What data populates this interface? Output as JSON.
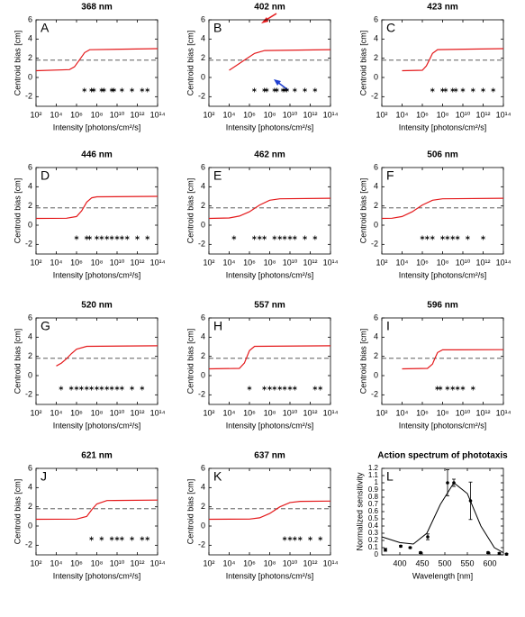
{
  "chart_data": [
    {
      "type": "line",
      "title": "368 nm",
      "panel": "A",
      "xlabel": "Intensity [photons/cm²/s]",
      "ylabel": "Centroid bias [cm]",
      "xscale": "log",
      "xlim": [
        100.0,
        100000000000000.0
      ],
      "xticks": [
        {
          "value": 100.0,
          "label": "10²"
        },
        {
          "value": 10000.0,
          "label": "10⁴"
        },
        {
          "value": 1000000.0,
          "label": "10⁶"
        },
        {
          "value": 100000000.0,
          "label": "10⁸"
        },
        {
          "value": 10000000000.0,
          "label": "10¹⁰"
        },
        {
          "value": 1000000000000.0,
          "label": "10¹²"
        },
        {
          "value": 100000000000000.0,
          "label": "10¹⁴"
        }
      ],
      "ylim": [
        -3,
        6
      ],
      "yticks": [
        -2,
        0,
        2,
        4,
        6
      ],
      "color": "#e41a1c",
      "threshold": 1.8,
      "x": [
        100.0,
        200000.0,
        630000.0,
        2000000.0,
        6300000.0,
        20000000.0,
        100000000000000.0
      ],
      "values": [
        0.7,
        0.82,
        1.11,
        1.85,
        2.59,
        2.89,
        3.0
      ],
      "significant": [
        6000000.0,
        30000000.0,
        50000000.0,
        300000000.0,
        500000000.0,
        3000000000.0,
        5000000000.0,
        30000000000.0,
        300000000000.0,
        3000000000000.0,
        10000000000000.0
      ]
    },
    {
      "type": "line",
      "title": "402 nm",
      "panel": "B",
      "xlabel": "Intensity [photons/cm²/s]",
      "ylabel": "Centroid bias [cm]",
      "xscale": "log",
      "xlim": [
        100.0,
        100000000000000.0
      ],
      "xticks": [
        {
          "value": 100.0,
          "label": "10²"
        },
        {
          "value": 10000.0,
          "label": "10⁴"
        },
        {
          "value": 1000000.0,
          "label": "10⁶"
        },
        {
          "value": 100000000.0,
          "label": "10⁸"
        },
        {
          "value": 10000000000.0,
          "label": "10¹⁰"
        },
        {
          "value": 1000000000000.0,
          "label": "10¹²"
        },
        {
          "value": 100000000000000.0,
          "label": "10¹⁴"
        }
      ],
      "ylim": [
        -3,
        6
      ],
      "yticks": [
        -2,
        0,
        2,
        4,
        6
      ],
      "color": "#e41a1c",
      "threshold": 1.8,
      "x": [
        10000.0,
        32000.0,
        320000.0,
        3200000.0,
        32000000.0,
        100000000000000.0
      ],
      "values": [
        0.75,
        1.1,
        1.8,
        2.5,
        2.8,
        2.9
      ],
      "significant": [
        3000000.0,
        30000000.0,
        50000000.0,
        300000000.0,
        500000000.0,
        2000000000.0,
        3000000000.0,
        5000000000.0,
        30000000000.0,
        300000000000.0,
        3000000000000.0
      ]
    },
    {
      "type": "line",
      "title": "423 nm",
      "panel": "C",
      "xlabel": "Intensity [photons/cm²/s]",
      "ylabel": "Centroid bias [cm]",
      "xscale": "log",
      "xlim": [
        100.0,
        100000000000000.0
      ],
      "xticks": [
        {
          "value": 100.0,
          "label": "10²"
        },
        {
          "value": 10000.0,
          "label": "10⁴"
        },
        {
          "value": 1000000.0,
          "label": "10⁶"
        },
        {
          "value": 100000000.0,
          "label": "10⁸"
        },
        {
          "value": 10000000000.0,
          "label": "10¹⁰"
        },
        {
          "value": 1000000000000.0,
          "label": "10¹²"
        },
        {
          "value": 100000000000000.0,
          "label": "10¹⁴"
        }
      ],
      "ylim": [
        -3,
        6
      ],
      "yticks": [
        -2,
        0,
        2,
        4,
        6
      ],
      "color": "#e41a1c",
      "threshold": 1.8,
      "x": [
        10000.0,
        1000000.0,
        2500000.0,
        5000000.0,
        10000000.0,
        32000000.0,
        100000000000000.0
      ],
      "values": [
        0.7,
        0.75,
        1.2,
        1.85,
        2.5,
        2.9,
        3.0
      ],
      "significant": [
        10000000.0,
        100000000.0,
        200000000.0,
        1000000000.0,
        2000000000.0,
        10000000000.0,
        100000000000.0,
        1000000000000.0,
        10000000000000.0
      ]
    },
    {
      "type": "line",
      "title": "446 nm",
      "panel": "D",
      "xlabel": "Intensity [photons/cm²/s]",
      "ylabel": "Centroid bias [cm]",
      "xscale": "log",
      "xlim": [
        100.0,
        100000000000000.0
      ],
      "xticks": [
        {
          "value": 100.0,
          "label": "10²"
        },
        {
          "value": 10000.0,
          "label": "10⁴"
        },
        {
          "value": 1000000.0,
          "label": "10⁶"
        },
        {
          "value": 100000000.0,
          "label": "10⁸"
        },
        {
          "value": 10000000000.0,
          "label": "10¹⁰"
        },
        {
          "value": 1000000000000.0,
          "label": "10¹²"
        },
        {
          "value": 100000000000000.0,
          "label": "10¹⁴"
        }
      ],
      "ylim": [
        -3,
        6
      ],
      "yticks": [
        -2,
        0,
        2,
        4,
        6
      ],
      "color": "#e41a1c",
      "threshold": 1.8,
      "x": [
        100.0,
        100000.0,
        1000000.0,
        3200000.0,
        10000000.0,
        32000000.0,
        100000000.0,
        100000000000000.0
      ],
      "values": [
        0.7,
        0.72,
        0.9,
        1.5,
        2.4,
        2.85,
        2.95,
        3.0
      ],
      "significant": [
        1000000.0,
        10000000.0,
        20000000.0,
        100000000.0,
        300000000.0,
        1000000000.0,
        3000000000.0,
        10000000000.0,
        30000000000.0,
        100000000000.0,
        1000000000000.0,
        10000000000000.0
      ]
    },
    {
      "type": "line",
      "title": "462 nm",
      "panel": "E",
      "xlabel": "Intensity [photons/cm²/s]",
      "ylabel": "Centroid bias [cm]",
      "xscale": "log",
      "xlim": [
        100.0,
        100000000000000.0
      ],
      "xticks": [
        {
          "value": 100.0,
          "label": "10²"
        },
        {
          "value": 10000.0,
          "label": "10⁴"
        },
        {
          "value": 1000000.0,
          "label": "10⁶"
        },
        {
          "value": 100000000.0,
          "label": "10⁸"
        },
        {
          "value": 10000000000.0,
          "label": "10¹⁰"
        },
        {
          "value": 1000000000000.0,
          "label": "10¹²"
        },
        {
          "value": 100000000000000.0,
          "label": "10¹⁴"
        }
      ],
      "ylim": [
        -3,
        6
      ],
      "yticks": [
        -2,
        0,
        2,
        4,
        6
      ],
      "color": "#e41a1c",
      "threshold": 1.8,
      "x": [
        100.0,
        10000.0,
        100000.0,
        1000000.0,
        10000000.0,
        100000000.0,
        1000000000.0,
        100000000000000.0
      ],
      "values": [
        0.7,
        0.75,
        0.95,
        1.4,
        2.1,
        2.6,
        2.75,
        2.8
      ],
      "significant": [
        30000.0,
        3000000.0,
        10000000.0,
        30000000.0,
        300000000.0,
        1000000000.0,
        3000000000.0,
        10000000000.0,
        30000000000.0,
        300000000000.0,
        3000000000000.0
      ]
    },
    {
      "type": "line",
      "title": "506 nm",
      "panel": "F",
      "xlabel": "Intensity [photons/cm²/s]",
      "ylabel": "Centroid bias [cm]",
      "xscale": "log",
      "xlim": [
        100.0,
        100000000000000.0
      ],
      "xticks": [
        {
          "value": 100.0,
          "label": "10²"
        },
        {
          "value": 10000.0,
          "label": "10⁴"
        },
        {
          "value": 1000000.0,
          "label": "10⁶"
        },
        {
          "value": 100000000.0,
          "label": "10⁸"
        },
        {
          "value": 10000000000.0,
          "label": "10¹⁰"
        },
        {
          "value": 1000000000000.0,
          "label": "10¹²"
        },
        {
          "value": 100000000000000.0,
          "label": "10¹⁴"
        }
      ],
      "ylim": [
        -3,
        6
      ],
      "yticks": [
        -2,
        0,
        2,
        4,
        6
      ],
      "color": "#e41a1c",
      "threshold": 1.8,
      "x": [
        100.0,
        1000.0,
        10000.0,
        100000.0,
        1000000.0,
        10000000.0,
        100000000.0,
        100000000000000.0
      ],
      "values": [
        0.7,
        0.72,
        0.9,
        1.4,
        2.1,
        2.6,
        2.75,
        2.8
      ],
      "significant": [
        1000000.0,
        3000000.0,
        10000000.0,
        100000000.0,
        300000000.0,
        1000000000.0,
        3000000000.0,
        30000000000.0,
        1000000000000.0
      ]
    },
    {
      "type": "line",
      "title": "520 nm",
      "panel": "G",
      "xlabel": "Intensity [photons/cm²/s]",
      "ylabel": "Centroid bias [cm]",
      "xscale": "log",
      "xlim": [
        100.0,
        100000000000000.0
      ],
      "xticks": [
        {
          "value": 100.0,
          "label": "10²"
        },
        {
          "value": 10000.0,
          "label": "10⁴"
        },
        {
          "value": 1000000.0,
          "label": "10⁶"
        },
        {
          "value": 100000000.0,
          "label": "10⁸"
        },
        {
          "value": 10000000000.0,
          "label": "10¹⁰"
        },
        {
          "value": 1000000000000.0,
          "label": "10¹²"
        },
        {
          "value": 100000000000000.0,
          "label": "10¹⁴"
        }
      ],
      "ylim": [
        -3,
        6
      ],
      "yticks": [
        -2,
        0,
        2,
        4,
        6
      ],
      "color": "#e41a1c",
      "threshold": 1.8,
      "x": [
        10000.0,
        32000.0,
        100000.0,
        320000.0,
        1000000.0,
        10000000.0,
        100000000000000.0
      ],
      "values": [
        1.0,
        1.3,
        1.75,
        2.3,
        2.75,
        3.05,
        3.1
      ],
      "significant": [
        30000.0,
        300000.0,
        1000000.0,
        3000000.0,
        10000000.0,
        30000000.0,
        100000000.0,
        300000000.0,
        1000000000.0,
        3000000000.0,
        10000000000.0,
        30000000000.0,
        300000000000.0,
        3000000000000.0
      ]
    },
    {
      "type": "line",
      "title": "557 nm",
      "panel": "H",
      "xlabel": "Intensity [photons/cm²/s]",
      "ylabel": "Centroid bias [cm]",
      "xscale": "log",
      "xlim": [
        100.0,
        100000000000000.0
      ],
      "xticks": [
        {
          "value": 100.0,
          "label": "10²"
        },
        {
          "value": 10000.0,
          "label": "10⁴"
        },
        {
          "value": 1000000.0,
          "label": "10⁶"
        },
        {
          "value": 100000000.0,
          "label": "10⁸"
        },
        {
          "value": 10000000000.0,
          "label": "10¹⁰"
        },
        {
          "value": 1000000000000.0,
          "label": "10¹²"
        },
        {
          "value": 100000000000000.0,
          "label": "10¹⁴"
        }
      ],
      "ylim": [
        -3,
        6
      ],
      "yticks": [
        -2,
        0,
        2,
        4,
        6
      ],
      "color": "#e41a1c",
      "threshold": 1.8,
      "x": [
        100.0,
        100000.0,
        320000.0,
        1000000.0,
        3200000.0,
        100000000000000.0
      ],
      "values": [
        0.7,
        0.75,
        1.3,
        2.6,
        3.05,
        3.1
      ],
      "significant": [
        1000000.0,
        30000000.0,
        100000000.0,
        300000000.0,
        1000000000.0,
        3000000000.0,
        10000000000.0,
        30000000000.0,
        3000000000000.0,
        10000000000000.0
      ]
    },
    {
      "type": "line",
      "title": "596 nm",
      "panel": "I",
      "xlabel": "Intensity [photons/cm²/s]",
      "ylabel": "Centroid bias [cm]",
      "xscale": "log",
      "xlim": [
        100.0,
        100000000000000.0
      ],
      "xticks": [
        {
          "value": 100.0,
          "label": "10²"
        },
        {
          "value": 10000.0,
          "label": "10⁴"
        },
        {
          "value": 1000000.0,
          "label": "10⁶"
        },
        {
          "value": 100000000.0,
          "label": "10⁸"
        },
        {
          "value": 10000000000.0,
          "label": "10¹⁰"
        },
        {
          "value": 1000000000000.0,
          "label": "10¹²"
        },
        {
          "value": 100000000000000.0,
          "label": "10¹⁴"
        }
      ],
      "ylim": [
        -3,
        6
      ],
      "yticks": [
        -2,
        0,
        2,
        4,
        6
      ],
      "color": "#e41a1c",
      "threshold": 1.8,
      "x": [
        10000.0,
        3200000.0,
        10000000.0,
        16000000.0,
        32000000.0,
        100000000.0,
        100000000000000.0
      ],
      "values": [
        0.7,
        0.75,
        1.2,
        1.7,
        2.4,
        2.68,
        2.7
      ],
      "significant": [
        30000000.0,
        60000000.0,
        300000000.0,
        1000000000.0,
        3000000000.0,
        10000000000.0,
        100000000000.0
      ]
    },
    {
      "type": "line",
      "title": "621 nm",
      "panel": "J",
      "xlabel": "Intensity [photons/cm²/s]",
      "ylabel": "Centroid bias [cm]",
      "xscale": "log",
      "xlim": [
        100.0,
        100000000000000.0
      ],
      "xticks": [
        {
          "value": 100.0,
          "label": "10²"
        },
        {
          "value": 10000.0,
          "label": "10⁴"
        },
        {
          "value": 1000000.0,
          "label": "10⁶"
        },
        {
          "value": 100000000.0,
          "label": "10⁸"
        },
        {
          "value": 10000000000.0,
          "label": "10¹⁰"
        },
        {
          "value": 1000000000000.0,
          "label": "10¹²"
        },
        {
          "value": 100000000000000.0,
          "label": "10¹⁴"
        }
      ],
      "ylim": [
        -3,
        6
      ],
      "yticks": [
        -2,
        0,
        2,
        4,
        6
      ],
      "color": "#e41a1c",
      "threshold": 1.8,
      "x": [
        100.0,
        1000000.0,
        10000000.0,
        32000000.0,
        100000000.0,
        1000000000.0,
        100000000000000.0
      ],
      "values": [
        0.7,
        0.72,
        1.0,
        1.7,
        2.3,
        2.65,
        2.7
      ],
      "significant": [
        30000000.0,
        300000000.0,
        3000000000.0,
        10000000000.0,
        30000000000.0,
        300000000000.0,
        3000000000000.0,
        10000000000000.0
      ]
    },
    {
      "type": "line",
      "title": "637 nm",
      "panel": "K",
      "xlabel": "Intensity [photons/cm²/s]",
      "ylabel": "Centroid bias [cm]",
      "xscale": "log",
      "xlim": [
        100.0,
        100000000000000.0
      ],
      "xticks": [
        {
          "value": 100.0,
          "label": "10²"
        },
        {
          "value": 10000.0,
          "label": "10⁴"
        },
        {
          "value": 1000000.0,
          "label": "10⁶"
        },
        {
          "value": 100000000.0,
          "label": "10⁸"
        },
        {
          "value": 10000000000.0,
          "label": "10¹⁰"
        },
        {
          "value": 1000000000000.0,
          "label": "10¹²"
        },
        {
          "value": 100000000000000.0,
          "label": "10¹⁴"
        }
      ],
      "ylim": [
        -3,
        6
      ],
      "yticks": [
        -2,
        0,
        2,
        4,
        6
      ],
      "color": "#e41a1c",
      "threshold": 1.8,
      "x": [
        100.0,
        1000000.0,
        10000000.0,
        100000000.0,
        1000000000.0,
        10000000000.0,
        100000000000.0,
        100000000000000.0
      ],
      "values": [
        0.7,
        0.72,
        0.85,
        1.3,
        2.0,
        2.45,
        2.57,
        2.6
      ],
      "significant": [
        3000000000.0,
        10000000000.0,
        30000000000.0,
        100000000000.0,
        1000000000000.0,
        10000000000000.0
      ]
    },
    {
      "type": "errorbar",
      "title": "Action spectrum of phototaxis",
      "panel": "L",
      "xlabel": "Wavelength [nm]",
      "ylabel": "Normalized sensitivity",
      "xlim": [
        360,
        630
      ],
      "xticks": [
        400,
        450,
        500,
        550,
        600
      ],
      "ylim": [
        0,
        1.2
      ],
      "yticks": [
        0,
        0.1,
        0.2,
        0.3,
        0.4,
        0.5,
        0.6,
        0.7,
        0.8,
        0.9,
        1,
        1.1,
        1.2
      ],
      "color": "#000000",
      "x": [
        368,
        402,
        423,
        446,
        462,
        506,
        520,
        557,
        596,
        621,
        637
      ],
      "values": [
        0.07,
        0.12,
        0.1,
        0.03,
        0.25,
        1.0,
        1.0,
        0.75,
        0.03,
        0.02,
        0.01
      ],
      "errors": [
        0.02,
        0.01,
        0.01,
        0.01,
        0.04,
        0.18,
        0.05,
        0.26,
        0.01,
        0.01,
        0.01
      ],
      "fit": {
        "x": [
          360,
          400,
          430,
          460,
          490,
          520,
          550,
          580,
          610,
          630
        ],
        "values": [
          0.25,
          0.17,
          0.15,
          0.3,
          0.7,
          1.0,
          0.85,
          0.4,
          0.1,
          0.03
        ]
      }
    }
  ]
}
